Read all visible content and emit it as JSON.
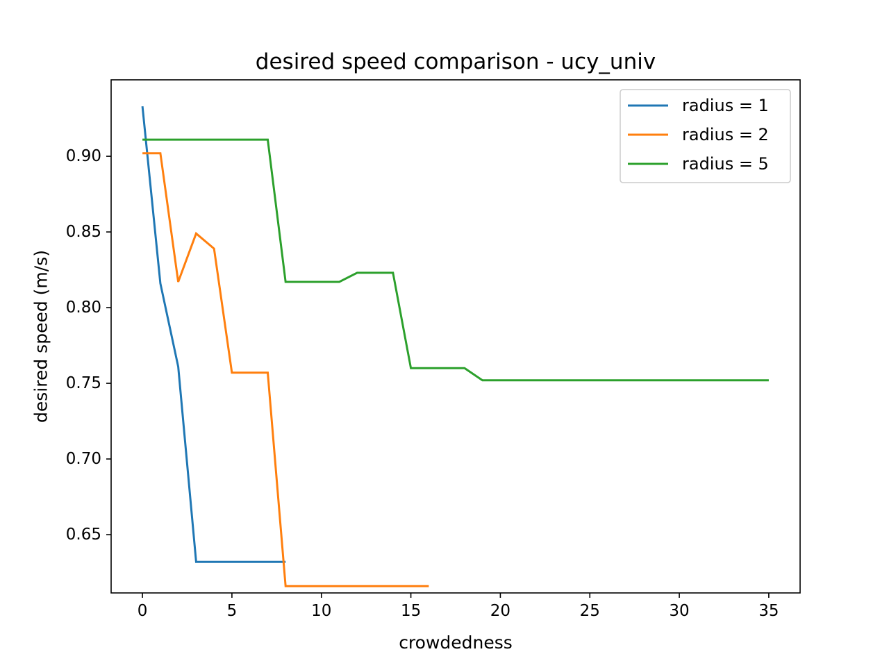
{
  "chart_data": {
    "type": "line",
    "title": "desired speed comparison - ucy_univ",
    "xlabel": "crowdedness",
    "ylabel": "desired speed (m/s)",
    "xlim": [
      -1.75,
      36.75
    ],
    "ylim": [
      0.6115,
      0.9505
    ],
    "xticks": [
      0,
      5,
      10,
      15,
      20,
      25,
      30,
      35
    ],
    "xtick_labels": [
      "0",
      "5",
      "10",
      "15",
      "20",
      "25",
      "30",
      "35"
    ],
    "yticks": [
      0.65,
      0.7,
      0.75,
      0.8,
      0.85,
      0.9
    ],
    "ytick_labels": [
      "0.65",
      "0.70",
      "0.75",
      "0.80",
      "0.85",
      "0.90"
    ],
    "grid": false,
    "legend_position": "top-right",
    "series": [
      {
        "name": "radius = 1",
        "color": "#1f77b4",
        "x": [
          0,
          1,
          2,
          3,
          4,
          5,
          6,
          7,
          8
        ],
        "y": [
          0.933,
          0.816,
          0.761,
          0.632,
          0.632,
          0.632,
          0.632,
          0.632,
          0.632
        ]
      },
      {
        "name": "radius = 2",
        "color": "#ff7f0e",
        "x": [
          0,
          1,
          2,
          3,
          4,
          5,
          6,
          7,
          8,
          9,
          10,
          11,
          12,
          13,
          14,
          15,
          16
        ],
        "y": [
          0.902,
          0.902,
          0.817,
          0.849,
          0.839,
          0.757,
          0.757,
          0.757,
          0.616,
          0.616,
          0.616,
          0.616,
          0.616,
          0.616,
          0.616,
          0.616,
          0.616
        ]
      },
      {
        "name": "radius = 5",
        "color": "#2ca02c",
        "x": [
          0,
          1,
          2,
          3,
          4,
          5,
          6,
          7,
          8,
          9,
          10,
          11,
          12,
          13,
          14,
          15,
          16,
          17,
          18,
          19,
          20,
          21,
          22,
          23,
          24,
          25,
          26,
          27,
          28,
          29,
          30,
          31,
          32,
          33,
          34,
          35
        ],
        "y": [
          0.911,
          0.911,
          0.911,
          0.911,
          0.911,
          0.911,
          0.911,
          0.911,
          0.817,
          0.817,
          0.817,
          0.817,
          0.823,
          0.823,
          0.823,
          0.76,
          0.76,
          0.76,
          0.76,
          0.752,
          0.752,
          0.752,
          0.752,
          0.752,
          0.752,
          0.752,
          0.752,
          0.752,
          0.752,
          0.752,
          0.752,
          0.752,
          0.752,
          0.752,
          0.752,
          0.752
        ]
      }
    ]
  }
}
